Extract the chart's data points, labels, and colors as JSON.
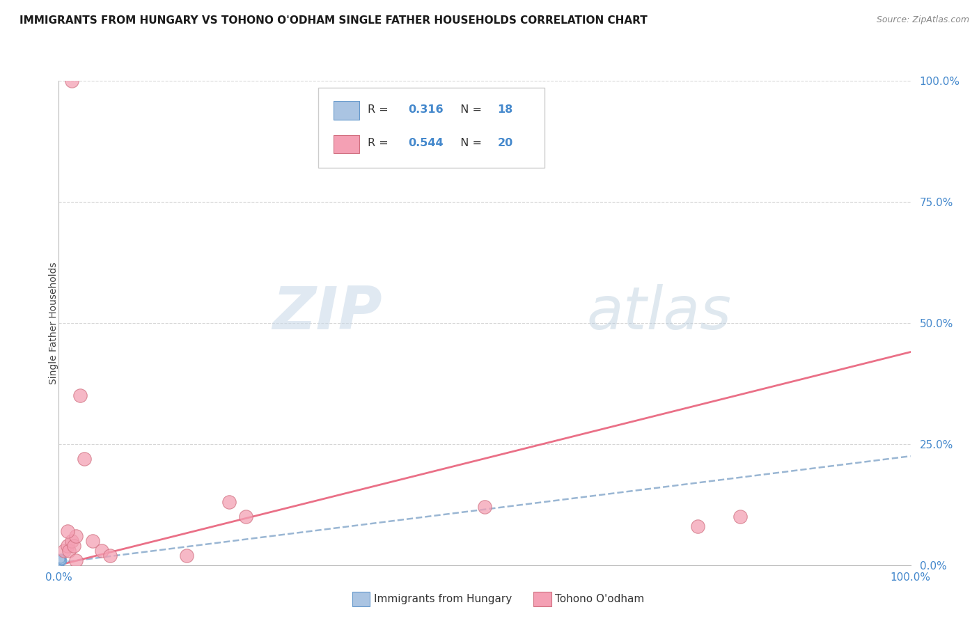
{
  "title": "IMMIGRANTS FROM HUNGARY VS TOHONO O'ODHAM SINGLE FATHER HOUSEHOLDS CORRELATION CHART",
  "source": "Source: ZipAtlas.com",
  "ylabel": "Single Father Households",
  "y_ticks": [
    "0.0%",
    "25.0%",
    "50.0%",
    "75.0%",
    "100.0%"
  ],
  "y_tick_vals": [
    0.0,
    0.25,
    0.5,
    0.75,
    1.0
  ],
  "legend_bottom1": "Immigrants from Hungary",
  "legend_bottom2": "Tohono O'odham",
  "R_blue": "0.316",
  "N_blue": "18",
  "R_pink": "0.544",
  "N_pink": "20",
  "color_blue": "#aac4e2",
  "color_pink": "#f4a0b4",
  "line_blue_color": "#88aacc",
  "line_pink_color": "#e8607a",
  "text_color": "#4488cc",
  "blue_line_intercept": 0.005,
  "blue_line_slope": 0.22,
  "pink_line_intercept": 0.0,
  "pink_line_slope": 0.44,
  "blue_points_x": [
    0.001,
    0.002,
    0.002,
    0.003,
    0.003,
    0.004,
    0.004,
    0.005,
    0.001,
    0.002,
    0.003,
    0.002,
    0.001,
    0.003,
    0.002,
    0.004,
    0.003,
    0.002
  ],
  "blue_points_y": [
    0.008,
    0.01,
    0.012,
    0.008,
    0.015,
    0.01,
    0.012,
    0.01,
    0.005,
    0.008,
    0.012,
    0.006,
    0.01,
    0.008,
    0.015,
    0.008,
    0.01,
    0.012
  ],
  "pink_points_x": [
    0.006,
    0.01,
    0.012,
    0.015,
    0.018,
    0.02,
    0.025,
    0.03,
    0.04,
    0.05,
    0.06,
    0.15,
    0.2,
    0.22,
    0.5,
    0.75,
    0.8,
    0.02,
    0.015,
    0.01
  ],
  "pink_points_y": [
    0.03,
    0.04,
    0.03,
    0.05,
    0.04,
    0.06,
    0.35,
    0.22,
    0.05,
    0.03,
    0.02,
    0.02,
    0.13,
    0.1,
    0.12,
    0.08,
    0.1,
    0.01,
    1.0,
    0.07
  ],
  "blue_circle_size": 8,
  "pink_circle_size": 14,
  "watermark_zip": "ZIP",
  "watermark_atlas": "atlas"
}
